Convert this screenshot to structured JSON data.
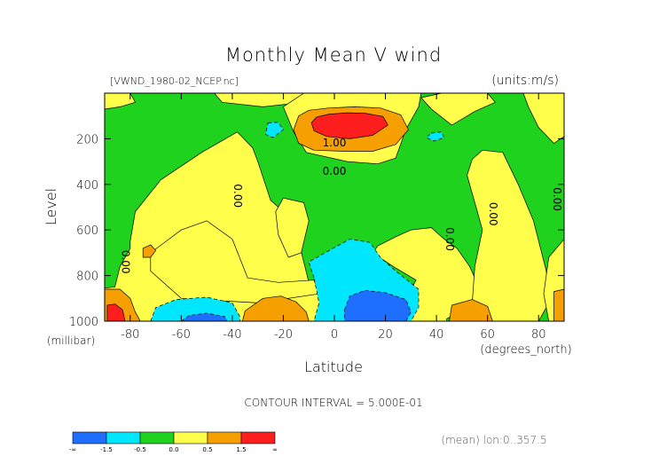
{
  "chart_data": {
    "type": "heatmap",
    "subtype": "filled-contour",
    "title": "Monthly Mean V wind",
    "file_label": "[VWND_1980-02_NCEP.nc]",
    "units_label": "(units:m/s)",
    "xlabel": "Latitude",
    "x_unit_label": "(degrees_north)",
    "ylabel": "Level",
    "y_unit_label": "(millibar)",
    "xlim": [
      -90,
      90
    ],
    "ylim": [
      1000,
      0
    ],
    "x_ticks": [
      "-80",
      "-60",
      "-40",
      "-20",
      "0",
      "20",
      "40",
      "60",
      "80"
    ],
    "y_ticks": [
      "200",
      "400",
      "600",
      "800",
      "1000"
    ],
    "contour_interval_text": "CONTOUR INTERVAL = 5.000E-01",
    "mean_note": "(mean) lon:0..357.5",
    "contour_labels": [
      {
        "text": "1.00",
        "x": 0,
        "y": 220
      },
      {
        "text": "0.00",
        "x": 0,
        "y": 345
      },
      {
        "text": "0.00",
        "x": -38,
        "y": 450
      },
      {
        "text": "0.00",
        "x": -82,
        "y": 740
      },
      {
        "text": "0.00",
        "x": 45,
        "y": 640
      },
      {
        "text": "0.00",
        "x": 62,
        "y": 530
      },
      {
        "text": "0.00",
        "x": 87,
        "y": 465
      }
    ],
    "colorbar": {
      "labels": [
        "-∞",
        "-1.5",
        "-0.5",
        "0.0",
        "0.5",
        "1.5",
        "∞"
      ],
      "colors": [
        "#1e6eff",
        "#00e6ff",
        "#1ed21e",
        "#ffff4b",
        "#f5a000",
        "#ff1e1e"
      ],
      "bins": [
        "< -1.5",
        "-1.5 – -0.5",
        "-0.5 – 0.0",
        "0.0 – 0.5",
        "0.5 – 1.5",
        "> 1.5"
      ]
    },
    "regions": [
      {
        "id": "yellow-sh",
        "level": "0.0 to 0.5",
        "color": "#ffff4b",
        "points": [
          [
            -80,
            650
          ],
          [
            -78,
            520
          ],
          [
            -68,
            380
          ],
          [
            -52,
            260
          ],
          [
            -38,
            170
          ],
          [
            -32,
            240
          ],
          [
            -30,
            300
          ],
          [
            -25,
            470
          ],
          [
            -16,
            560
          ],
          [
            -10,
            830
          ],
          [
            -3,
            920
          ],
          [
            -4,
            1000
          ],
          [
            -90,
            1000
          ],
          [
            -90,
            855
          ],
          [
            -86,
            850
          ],
          [
            -84,
            760
          ],
          [
            -80,
            680
          ]
        ]
      },
      {
        "id": "yellow-sh-lower",
        "level": "0.0 to 0.5",
        "color": "#ffff4b",
        "points": [
          [
            -72,
            700
          ],
          [
            -66,
            650
          ],
          [
            -60,
            600
          ],
          [
            -50,
            560
          ],
          [
            -40,
            640
          ],
          [
            -34,
            810
          ],
          [
            -22,
            830
          ],
          [
            -8,
            820
          ],
          [
            -6,
            880
          ],
          [
            -30,
            920
          ],
          [
            -60,
            900
          ],
          [
            -72,
            780
          ]
        ]
      },
      {
        "id": "yellow-top-left",
        "level": "0.0 to 0.5",
        "color": "#ffff4b",
        "points": [
          [
            -90,
            0
          ],
          [
            -80,
            0
          ],
          [
            -78,
            40
          ],
          [
            -84,
            60
          ],
          [
            -90,
            70
          ]
        ]
      },
      {
        "id": "yellow-top-mid",
        "level": "0.0 to 0.5",
        "color": "#ffff4b",
        "points": [
          [
            -47,
            0
          ],
          [
            -8,
            0
          ],
          [
            -12,
            40
          ],
          [
            -28,
            60
          ],
          [
            -44,
            40
          ]
        ]
      },
      {
        "id": "yellow-nh-subtropics",
        "level": "0.0 to 0.5",
        "color": "#ffff4b",
        "points": [
          [
            -12,
            0
          ],
          [
            34,
            0
          ],
          [
            33,
            60
          ],
          [
            28,
            160
          ],
          [
            24,
            285
          ],
          [
            17,
            310
          ],
          [
            5,
            300
          ],
          [
            -11,
            260
          ],
          [
            -16,
            170
          ],
          [
            -20,
            60
          ]
        ]
      },
      {
        "id": "yellow-sh-column",
        "level": "0.0 to 0.5",
        "color": "#ffff4b",
        "points": [
          [
            -20,
            460
          ],
          [
            -12,
            480
          ],
          [
            -10,
            560
          ],
          [
            -13,
            700
          ],
          [
            -18,
            720
          ],
          [
            -22,
            620
          ],
          [
            -23,
            520
          ]
        ]
      },
      {
        "id": "yellow-nh-lower",
        "level": "0.0 to 0.5",
        "color": "#ffff4b",
        "points": [
          [
            17,
            670
          ],
          [
            24,
            630
          ],
          [
            30,
            600
          ],
          [
            38,
            590
          ],
          [
            43,
            640
          ],
          [
            48,
            680
          ],
          [
            53,
            760
          ],
          [
            57,
            860
          ],
          [
            55,
            920
          ],
          [
            44,
            990
          ],
          [
            44,
            1000
          ],
          [
            20,
            1000
          ],
          [
            22,
            960
          ],
          [
            28,
            900
          ],
          [
            32,
            820
          ],
          [
            23,
            760
          ],
          [
            15,
            700
          ]
        ]
      },
      {
        "id": "yellow-nh-upper",
        "level": "0.0 to 0.5",
        "color": "#ffff4b",
        "points": [
          [
            42,
            0
          ],
          [
            60,
            0
          ],
          [
            63,
            40
          ],
          [
            55,
            80
          ],
          [
            46,
            140
          ],
          [
            38,
            70
          ],
          [
            34,
            20
          ]
        ]
      },
      {
        "id": "yellow-nh-polar",
        "level": "0.0 to 0.5",
        "color": "#ffff4b",
        "points": [
          [
            58,
            250
          ],
          [
            66,
            260
          ],
          [
            72,
            400
          ],
          [
            78,
            560
          ],
          [
            83,
            780
          ],
          [
            84,
            920
          ],
          [
            80,
            1000
          ],
          [
            60,
            1000
          ],
          [
            54,
            920
          ],
          [
            55,
            760
          ],
          [
            58,
            600
          ],
          [
            55,
            480
          ],
          [
            52,
            360
          ],
          [
            54,
            290
          ]
        ]
      },
      {
        "id": "yellow-nh-pole-top",
        "level": "0.0 to 0.5",
        "color": "#ffff4b",
        "points": [
          [
            74,
            0
          ],
          [
            90,
            0
          ],
          [
            90,
            190
          ],
          [
            86,
            220
          ],
          [
            80,
            150
          ],
          [
            76,
            60
          ]
        ]
      },
      {
        "id": "yellow-nh-pole-bottom",
        "level": "0.0 to 0.5",
        "color": "#ffff4b",
        "points": [
          [
            84,
            720
          ],
          [
            90,
            640
          ],
          [
            90,
            1000
          ],
          [
            84,
            1000
          ],
          [
            82,
            880
          ]
        ]
      },
      {
        "id": "orange-jet",
        "level": "0.5 to 1.5",
        "color": "#f5a000",
        "points": [
          [
            -14,
            100
          ],
          [
            -10,
            75
          ],
          [
            -2,
            65
          ],
          [
            8,
            60
          ],
          [
            18,
            65
          ],
          [
            26,
            95
          ],
          [
            29,
            160
          ],
          [
            24,
            225
          ],
          [
            15,
            255
          ],
          [
            4,
            255
          ],
          [
            -8,
            250
          ],
          [
            -14,
            220
          ],
          [
            -16,
            160
          ]
        ]
      },
      {
        "id": "red-jet",
        "level": "> 1.5",
        "color": "#ff1e1e",
        "points": [
          [
            -7,
            105
          ],
          [
            -2,
            92
          ],
          [
            5,
            86
          ],
          [
            12,
            88
          ],
          [
            19,
            102
          ],
          [
            21,
            140
          ],
          [
            15,
            185
          ],
          [
            6,
            200
          ],
          [
            -3,
            190
          ],
          [
            -8,
            165
          ],
          [
            -9,
            130
          ]
        ]
      },
      {
        "id": "orange-sh-pole",
        "level": "0.5 to 1.5",
        "color": "#f5a000",
        "points": [
          [
            -90,
            860
          ],
          [
            -84,
            860
          ],
          [
            -80,
            900
          ],
          [
            -78,
            960
          ],
          [
            -76,
            1000
          ],
          [
            -90,
            1000
          ]
        ]
      },
      {
        "id": "red-sh-pole",
        "level": "> 1.5",
        "color": "#ff1e1e",
        "points": [
          [
            -89,
            930
          ],
          [
            -86,
            925
          ],
          [
            -83,
            950
          ],
          [
            -82,
            1000
          ],
          [
            -89,
            1000
          ]
        ]
      },
      {
        "id": "orange-sh-mid",
        "level": "0.5 to 1.5",
        "color": "#f5a000",
        "points": [
          [
            -35,
            955
          ],
          [
            -28,
            900
          ],
          [
            -21,
            890
          ],
          [
            -15,
            915
          ],
          [
            -11,
            960
          ],
          [
            -10,
            1000
          ],
          [
            -36,
            1000
          ]
        ]
      },
      {
        "id": "orange-nh-mid",
        "level": "0.5 to 1.5",
        "color": "#f5a000",
        "points": [
          [
            46,
            930
          ],
          [
            54,
            905
          ],
          [
            60,
            935
          ],
          [
            62,
            1000
          ],
          [
            45,
            1000
          ]
        ]
      },
      {
        "id": "orange-nh-pole",
        "level": "0.5 to 1.5",
        "color": "#f5a000",
        "points": [
          [
            86,
            870
          ],
          [
            90,
            860
          ],
          [
            90,
            1000
          ],
          [
            86,
            1000
          ]
        ]
      },
      {
        "id": "orange-small-sh",
        "level": "0.5 to 1.5",
        "color": "#f5a000",
        "points": [
          [
            -75,
            680
          ],
          [
            -72,
            665
          ],
          [
            -70,
            690
          ],
          [
            -72,
            720
          ],
          [
            -75,
            720
          ]
        ]
      },
      {
        "id": "cyan-sh-low",
        "level": "-1.5 to -0.5",
        "color": "#00e6ff",
        "points": [
          [
            -72,
            1000
          ],
          [
            -70,
            940
          ],
          [
            -62,
            905
          ],
          [
            -50,
            895
          ],
          [
            -40,
            920
          ],
          [
            -37,
            980
          ],
          [
            -37,
            1000
          ]
        ]
      },
      {
        "id": "blue-sh-low",
        "level": "< -1.5",
        "color": "#1e6eff",
        "points": [
          [
            -60,
            1000
          ],
          [
            -57,
            975
          ],
          [
            -50,
            965
          ],
          [
            -43,
            980
          ],
          [
            -42,
            1000
          ]
        ]
      },
      {
        "id": "cyan-eq-low",
        "level": "-1.5 to -0.5",
        "color": "#00e6ff",
        "points": [
          [
            -8,
            810
          ],
          [
            -10,
            740
          ],
          [
            -2,
            690
          ],
          [
            6,
            640
          ],
          [
            14,
            655
          ],
          [
            18,
            720
          ],
          [
            24,
            780
          ],
          [
            33,
            860
          ],
          [
            33,
            940
          ],
          [
            30,
            1000
          ],
          [
            -8,
            1000
          ],
          [
            -6,
            920
          ]
        ]
      },
      {
        "id": "blue-eq-low",
        "level": "< -1.5",
        "color": "#1e6eff",
        "points": [
          [
            4,
            950
          ],
          [
            6,
            890
          ],
          [
            12,
            865
          ],
          [
            20,
            875
          ],
          [
            28,
            905
          ],
          [
            30,
            960
          ],
          [
            28,
            1000
          ],
          [
            4,
            1000
          ]
        ]
      },
      {
        "id": "cyan-small-1",
        "level": "-1.5 to -0.5",
        "color": "#00e6ff",
        "points": [
          [
            -26,
            130
          ],
          [
            -22,
            128
          ],
          [
            -20,
            160
          ],
          [
            -24,
            195
          ],
          [
            -27,
            180
          ]
        ]
      },
      {
        "id": "cyan-small-2",
        "level": "-1.5 to -0.5",
        "color": "#00e6ff",
        "points": [
          [
            38,
            175
          ],
          [
            42,
            170
          ],
          [
            43,
            195
          ],
          [
            39,
            210
          ],
          [
            36,
            195
          ]
        ]
      }
    ]
  }
}
